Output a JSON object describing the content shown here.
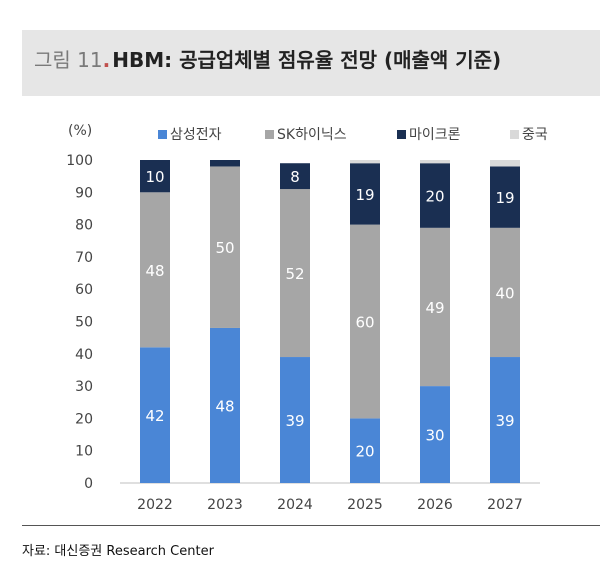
{
  "figure": {
    "number": "그림 11",
    "title": "HBM: 공급업체별 점유율 전망 (매출액 기준)"
  },
  "source": "자료: 대신증권 Research Center",
  "colors": {
    "samsung": "#4a86d6",
    "skhynix": "#a6a6a6",
    "micron": "#1a2f52",
    "china": "#d9d9d9"
  },
  "chart_data": {
    "type": "bar",
    "stacked": true,
    "unit_label": "(%)",
    "categories": [
      "2022",
      "2023",
      "2024",
      "2025",
      "2026",
      "2027"
    ],
    "ylim": [
      0,
      100
    ],
    "yticks": [
      0,
      10,
      20,
      30,
      40,
      50,
      60,
      70,
      80,
      90,
      100
    ],
    "grid": false,
    "legend_position": "top-right",
    "series": [
      {
        "name": "삼성전자",
        "values": [
          42,
          48,
          39,
          20,
          30,
          39
        ],
        "labels": [
          "42",
          "48",
          "39",
          "20",
          "30",
          "39"
        ],
        "color": "#4a86d6"
      },
      {
        "name": "SK하이닉스",
        "values": [
          48,
          50,
          52,
          60,
          49,
          40
        ],
        "labels": [
          "48",
          "50",
          "52",
          "60",
          "49",
          "40"
        ],
        "color": "#a6a6a6"
      },
      {
        "name": "마이크론",
        "values": [
          10,
          2,
          8,
          19,
          20,
          19
        ],
        "labels": [
          "10",
          "",
          "8",
          "19",
          "20",
          "19"
        ],
        "color": "#1a2f52"
      },
      {
        "name": "중국",
        "values": [
          0,
          0,
          0,
          1,
          1,
          2
        ],
        "labels": [
          "",
          "",
          "",
          "",
          "",
          ""
        ],
        "color": "#d9d9d9"
      }
    ]
  }
}
